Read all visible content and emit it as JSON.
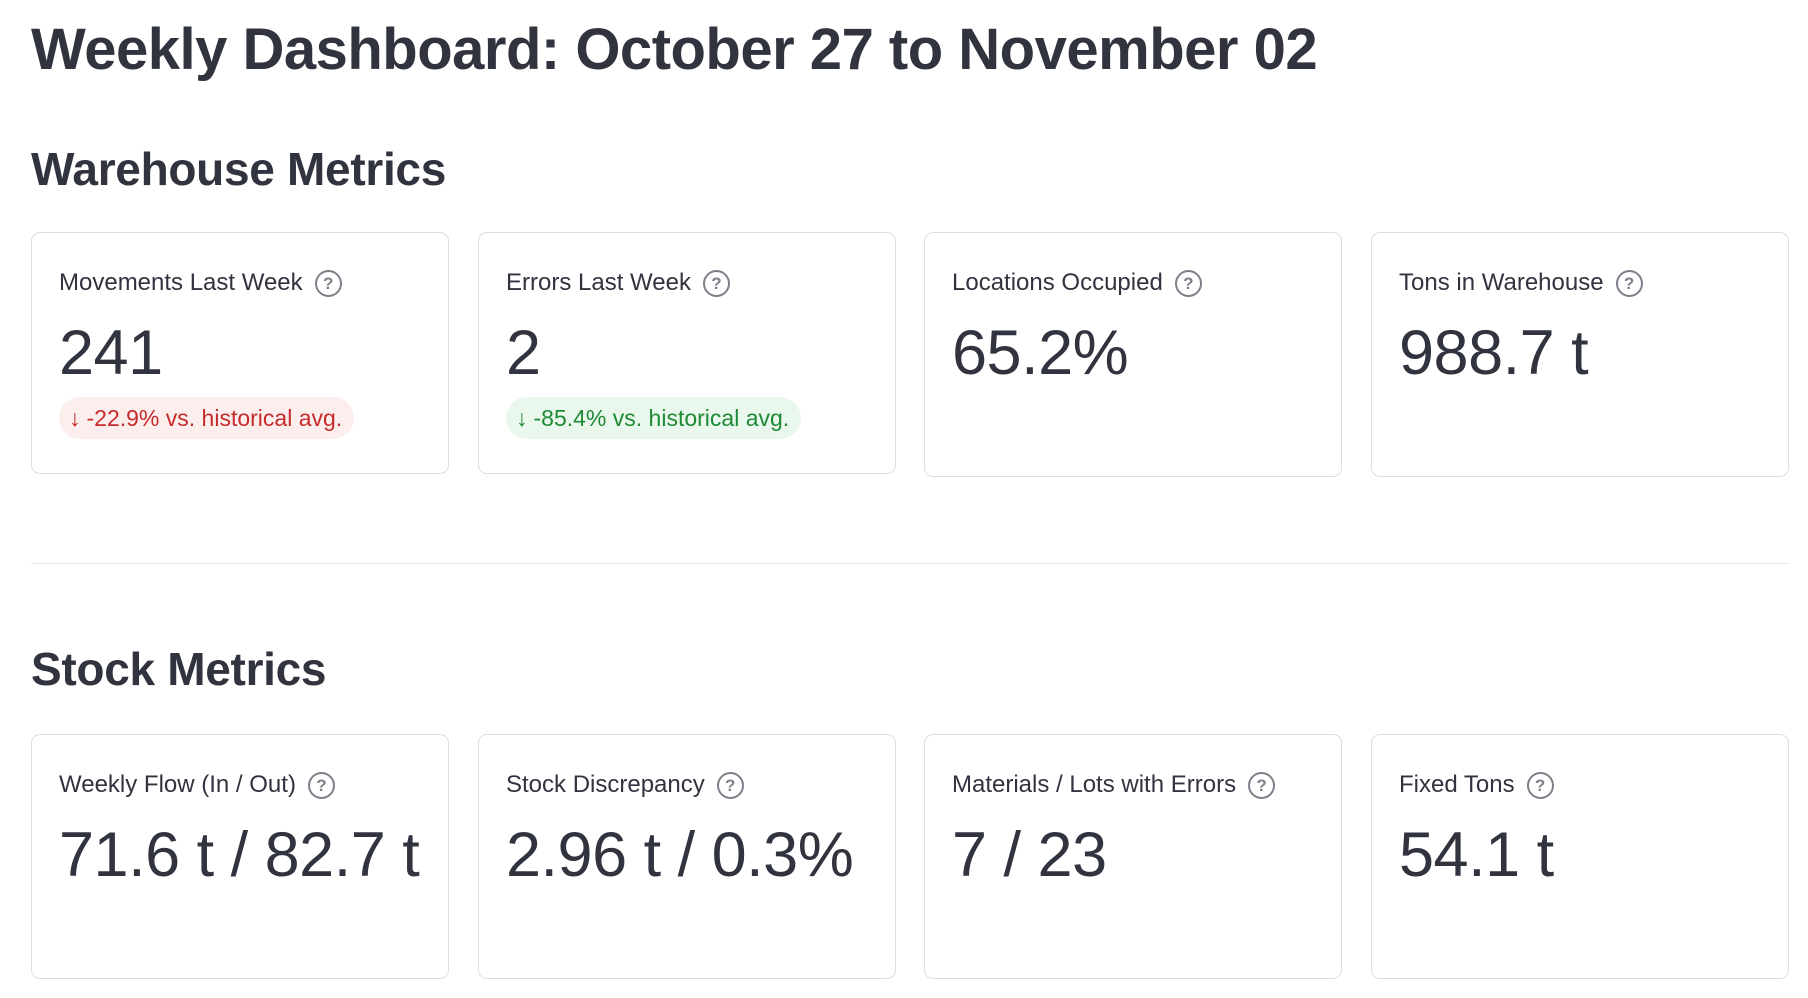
{
  "page": {
    "title": "Weekly Dashboard: October 27 to November 02"
  },
  "warehouse": {
    "heading": "Warehouse Metrics",
    "cards": [
      {
        "label": "Movements Last Week",
        "value": "241",
        "delta": "-22.9% vs. historical avg.",
        "delta_arrow": "↓",
        "delta_color": "#c62b2b"
      },
      {
        "label": "Errors Last Week",
        "value": "2",
        "delta": "-85.4% vs. historical avg.",
        "delta_arrow": "↓",
        "delta_color": "#1d8a36"
      },
      {
        "label": "Locations Occupied",
        "value": "65.2%"
      },
      {
        "label": "Tons in Warehouse",
        "value": "988.7 t"
      }
    ]
  },
  "stock": {
    "heading": "Stock Metrics",
    "cards": [
      {
        "label": "Weekly Flow (In / Out)",
        "value": "71.6 t / 82.7 t"
      },
      {
        "label": "Stock Discrepancy",
        "value": "2.96 t / 0.3%"
      },
      {
        "label": "Materials / Lots with Errors",
        "value": "7 / 23"
      },
      {
        "label": "Fixed Tons",
        "value": "54.1 t"
      }
    ]
  },
  "icons": {
    "help": "question-circle-icon",
    "help_glyph": "?",
    "delta_down": "arrow-down-icon"
  }
}
